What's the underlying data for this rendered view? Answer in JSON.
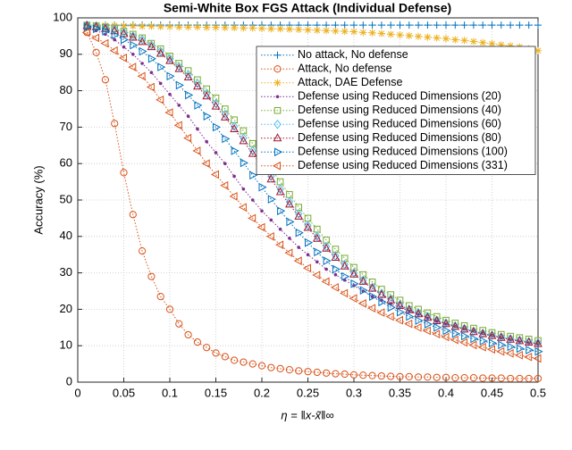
{
  "chart_data": {
    "type": "line",
    "title": "Semi-White Box FGS Attack (Individual Defense)",
    "x_label": "η = ‖x-x̃‖∞",
    "y_label": "Accuracy (%)",
    "xlim": [
      0,
      0.5
    ],
    "ylim": [
      0,
      100
    ],
    "xticks": [
      0,
      0.05,
      0.1,
      0.15,
      0.2,
      0.25,
      0.3,
      0.35,
      0.4,
      0.45,
      0.5
    ],
    "yticks": [
      0,
      10,
      20,
      30,
      40,
      50,
      60,
      70,
      80,
      90,
      100
    ],
    "grid": true,
    "legend": "upper right",
    "x": [
      0.01,
      0.02,
      0.03,
      0.04,
      0.05,
      0.06,
      0.07,
      0.08,
      0.09,
      0.1,
      0.11,
      0.12,
      0.13,
      0.14,
      0.15,
      0.16,
      0.17,
      0.18,
      0.19,
      0.2,
      0.21,
      0.22,
      0.23,
      0.24,
      0.25,
      0.26,
      0.27,
      0.28,
      0.29,
      0.3,
      0.31,
      0.32,
      0.33,
      0.34,
      0.35,
      0.36,
      0.37,
      0.38,
      0.39,
      0.4,
      0.41,
      0.42,
      0.43,
      0.44,
      0.45,
      0.46,
      0.47,
      0.48,
      0.49,
      0.5
    ],
    "series": [
      {
        "name": "No attack, No defense",
        "color": "#0072bd",
        "marker": "+",
        "values": [
          98,
          98,
          98,
          98,
          98,
          98,
          98,
          98,
          98,
          98,
          98,
          98,
          98,
          98,
          98,
          98,
          98,
          98,
          98,
          98,
          98,
          98,
          98,
          98,
          98,
          98,
          98,
          98,
          98,
          98,
          98,
          98,
          98,
          98,
          98,
          98,
          98,
          98,
          98,
          98,
          98,
          98,
          98,
          98,
          98,
          98,
          98,
          98,
          98,
          98
        ]
      },
      {
        "name": "Attack, No defense",
        "color": "#d95319",
        "marker": "o",
        "values": [
          96,
          90.5,
          83,
          71,
          57.5,
          46,
          36,
          29,
          23.5,
          20,
          16,
          13,
          11,
          9.5,
          8,
          7,
          6,
          5.5,
          5,
          4.5,
          4,
          3.7,
          3.4,
          3.1,
          2.9,
          2.7,
          2.5,
          2.3,
          2.2,
          2,
          1.9,
          1.8,
          1.7,
          1.6,
          1.5,
          1.5,
          1.4,
          1.4,
          1.3,
          1.3,
          1.2,
          1.2,
          1.2,
          1.1,
          1.1,
          1.1,
          1,
          1,
          1,
          1
        ]
      },
      {
        "name": "Attack, DAE Defense",
        "color": "#edb120",
        "marker": "*",
        "values": [
          98,
          98,
          97.9,
          97.9,
          97.8,
          97.8,
          97.7,
          97.7,
          97.6,
          97.6,
          97.5,
          97.5,
          97.5,
          97.4,
          97.4,
          97.3,
          97.3,
          97.2,
          97.2,
          97.1,
          97,
          97,
          96.9,
          96.8,
          96.7,
          96.6,
          96.5,
          96.4,
          96.3,
          96.2,
          96,
          95.9,
          95.7,
          95.5,
          95.3,
          95.1,
          94.9,
          94.7,
          94.5,
          94.3,
          94,
          93.8,
          93.5,
          93.2,
          92.9,
          92.6,
          92.3,
          92,
          91.5,
          91
        ]
      },
      {
        "name": "Defense using Reduced Dimensions (20)",
        "color": "#7e2f8e",
        "marker": ".",
        "values": [
          97,
          96.5,
          95.5,
          94,
          92,
          90,
          87.5,
          85,
          82,
          79,
          76,
          73,
          69.5,
          66,
          63,
          60,
          56.5,
          53,
          50,
          47,
          44.5,
          42,
          39.5,
          37,
          35,
          33,
          31,
          29.5,
          28,
          26.5,
          25,
          23.5,
          22.5,
          21.5,
          20.5,
          19.5,
          18.5,
          17.5,
          16.7,
          16,
          15.3,
          14.6,
          14,
          13.4,
          12.8,
          12.2,
          11.7,
          11.2,
          10.8,
          10.4
        ]
      },
      {
        "name": "Defense using Reduced Dimensions (40)",
        "color": "#77ac30",
        "marker": "s",
        "values": [
          98,
          97.8,
          97.5,
          97,
          96.3,
          95.5,
          94.5,
          93,
          91.5,
          89.5,
          87.5,
          85.5,
          83,
          80.5,
          78,
          75,
          72,
          69,
          65.5,
          62,
          58.5,
          55,
          51.5,
          48,
          45,
          42,
          39,
          36.5,
          34,
          31.5,
          29.5,
          27.5,
          25.5,
          24,
          22.5,
          21,
          20,
          19,
          18,
          17,
          16.2,
          15.5,
          14.8,
          14.2,
          13.6,
          13.1,
          12.6,
          12.2,
          11.8,
          11.4
        ]
      },
      {
        "name": "Defense using Reduced Dimensions (60)",
        "color": "#4dbeee",
        "marker": "d",
        "values": [
          98,
          97.7,
          97.3,
          96.8,
          96,
          95,
          94,
          92.5,
          90.8,
          88.8,
          86.6,
          84.4,
          82,
          79.2,
          76.5,
          73.5,
          70.2,
          67,
          63.5,
          60,
          56.5,
          53,
          49.5,
          46.2,
          43,
          40,
          37.2,
          34.7,
          32.3,
          30,
          28,
          26,
          24.3,
          22.8,
          21.3,
          20,
          19,
          18,
          17,
          16.2,
          15.4,
          14.7,
          14,
          13.4,
          12.9,
          12.4,
          11.9,
          11.5,
          11.1,
          10.8
        ]
      },
      {
        "name": "Defense using Reduced Dimensions (80)",
        "color": "#a2142f",
        "marker": "^",
        "values": [
          97.8,
          97.5,
          97,
          96.4,
          95.6,
          94.6,
          93.4,
          92,
          90.2,
          88.2,
          86,
          83.7,
          81.2,
          78.5,
          75.7,
          72.7,
          69.5,
          66.2,
          62.7,
          59.2,
          55.7,
          52.2,
          48.8,
          45.5,
          42.4,
          39.4,
          36.7,
          34.2,
          31.8,
          29.6,
          27.6,
          25.7,
          24,
          22.5,
          21,
          19.8,
          18.7,
          17.7,
          16.8,
          16,
          15.2,
          14.5,
          13.8,
          13.2,
          12.7,
          12.2,
          11.7,
          11.3,
          10.9,
          10.5
        ]
      },
      {
        "name": "Defense using Reduced Dimensions (100)",
        "color": "#0072bd",
        "marker": ">",
        "values": [
          97.5,
          97,
          96.3,
          95.3,
          94,
          92.5,
          90.8,
          88.8,
          86.5,
          84,
          81.5,
          78.8,
          76,
          73,
          70,
          66.8,
          63.5,
          60.2,
          56.8,
          53.5,
          50.2,
          47,
          44,
          41,
          38.3,
          35.7,
          33.3,
          31,
          29,
          27,
          25.2,
          23.5,
          22,
          20.5,
          19.2,
          18,
          16.9,
          15.9,
          15,
          14.1,
          13.3,
          12.6,
          11.9,
          11.3,
          10.7,
          10.2,
          9.7,
          9.2,
          8.8,
          8.4
        ]
      },
      {
        "name": "Defense using Reduced Dimensions (331)",
        "color": "#d95319",
        "marker": "<",
        "values": [
          96,
          94.5,
          93,
          91,
          89,
          86.5,
          84,
          81,
          77.5,
          74,
          70.5,
          67,
          63.5,
          60,
          57,
          54,
          51,
          48,
          45,
          42.5,
          40,
          37.7,
          35.5,
          33.3,
          31.3,
          29.4,
          27.6,
          26,
          24.4,
          23,
          21.6,
          20.3,
          19.1,
          18,
          17,
          16,
          15,
          14.1,
          13.2,
          12.4,
          11.6,
          10.9,
          10.2,
          9.6,
          9,
          8.4,
          7.9,
          7.4,
          6.9,
          6.5
        ]
      }
    ]
  }
}
